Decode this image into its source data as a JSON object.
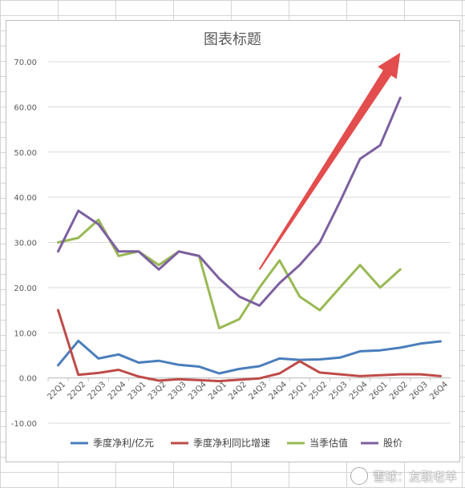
{
  "chart_data": {
    "type": "line",
    "title": "图表标题",
    "xlabel": "",
    "ylabel": "",
    "ylim": [
      -10,
      70
    ],
    "yticks": [
      -10,
      0,
      10,
      20,
      30,
      40,
      50,
      60,
      70
    ],
    "ytick_labels": [
      "-10.00",
      "0.00",
      "10.00",
      "20.00",
      "30.00",
      "40.00",
      "50.00",
      "60.00",
      "70.00"
    ],
    "grid": true,
    "legend": "bottom",
    "categories": [
      "22Q1",
      "22Q2",
      "22Q3",
      "22Q4",
      "23Q1",
      "23Q2",
      "23Q3",
      "23Q4",
      "24Q1",
      "24Q2",
      "24Q3",
      "24Q4",
      "25Q1",
      "25Q2",
      "25Q3",
      "25Q4",
      "26Q1",
      "26Q2",
      "26Q3",
      "26Q4"
    ],
    "series": [
      {
        "name": "季度净利/亿元",
        "color": "#4a7ebb",
        "values": [
          2.8,
          8.2,
          4.3,
          5.2,
          3.4,
          3.8,
          2.9,
          2.5,
          1.0,
          2.0,
          2.6,
          4.3,
          4.0,
          4.1,
          4.5,
          5.9,
          6.1,
          6.7,
          7.6,
          8.1
        ]
      },
      {
        "name": "季度净利同比增速",
        "color": "#be4b48",
        "values": [
          15.0,
          0.7,
          1.1,
          1.8,
          0.3,
          -0.6,
          -0.3,
          -0.5,
          -0.7,
          -0.4,
          -0.1,
          1.0,
          3.7,
          1.2,
          0.8,
          0.4,
          0.6,
          0.8,
          0.8,
          0.4
        ]
      },
      {
        "name": "当季估值",
        "color": "#98b954",
        "values": [
          30,
          31,
          35,
          27,
          28,
          25,
          28,
          27,
          11,
          13,
          20,
          26,
          18,
          15,
          20,
          25,
          20,
          24,
          null,
          null
        ]
      },
      {
        "name": "股价",
        "color": "#7d5fa0",
        "values": [
          28,
          37,
          34,
          28,
          28,
          24,
          28,
          27,
          22,
          18,
          16,
          21,
          25,
          30,
          39,
          48.5,
          51.5,
          62,
          null,
          null
        ]
      }
    ],
    "annotations": [
      {
        "type": "arrow",
        "color": "#e03a3a",
        "from": {
          "x": "24Q3",
          "y": 24
        },
        "to": {
          "x": "26Q2",
          "y": 72
        }
      }
    ]
  },
  "watermark": {
    "text": "雪球：友联老羊"
  }
}
